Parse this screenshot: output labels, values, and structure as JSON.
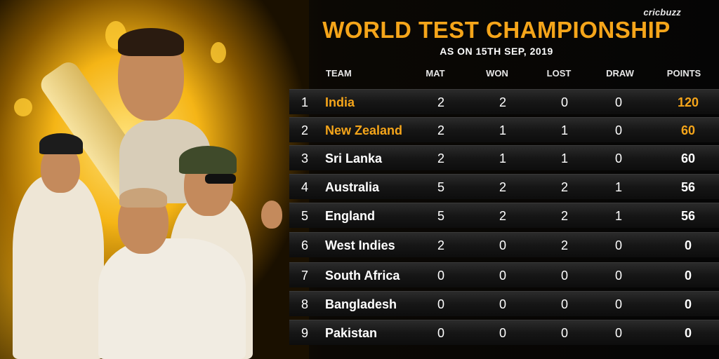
{
  "brand": {
    "logo_text": "cricbuzz"
  },
  "header": {
    "title": "WORLD TEST CHAMPIONSHIP",
    "subtitle": "AS ON 15TH SEP, 2019"
  },
  "table": {
    "columns": [
      "TEAM",
      "MAT",
      "WON",
      "LOST",
      "DRAW",
      "POINTS"
    ],
    "highlight_color": "#f5a51a",
    "rows": [
      {
        "rank": "1",
        "team": "India",
        "mat": "2",
        "won": "2",
        "lost": "0",
        "draw": "0",
        "points": "120",
        "highlight": true
      },
      {
        "rank": "2",
        "team": "New Zealand",
        "mat": "2",
        "won": "1",
        "lost": "1",
        "draw": "0",
        "points": "60",
        "highlight": true
      },
      {
        "rank": "3",
        "team": "Sri Lanka",
        "mat": "2",
        "won": "1",
        "lost": "1",
        "draw": "0",
        "points": "60",
        "highlight": false
      },
      {
        "rank": "4",
        "team": "Australia",
        "mat": "5",
        "won": "2",
        "lost": "2",
        "draw": "1",
        "points": "56",
        "highlight": false
      },
      {
        "rank": "5",
        "team": "England",
        "mat": "5",
        "won": "2",
        "lost": "2",
        "draw": "1",
        "points": "56",
        "highlight": false
      },
      {
        "rank": "6",
        "team": "West Indies",
        "mat": "2",
        "won": "0",
        "lost": "2",
        "draw": "0",
        "points": "0",
        "highlight": false
      },
      {
        "rank": "7",
        "team": "South Africa",
        "mat": "0",
        "won": "0",
        "lost": "0",
        "draw": "0",
        "points": "0",
        "highlight": false
      },
      {
        "rank": "8",
        "team": "Bangladesh",
        "mat": "0",
        "won": "0",
        "lost": "0",
        "draw": "0",
        "points": "0",
        "highlight": false
      },
      {
        "rank": "9",
        "team": "Pakistan",
        "mat": "0",
        "won": "0",
        "lost": "0",
        "draw": "0",
        "points": "0",
        "highlight": false
      }
    ]
  }
}
